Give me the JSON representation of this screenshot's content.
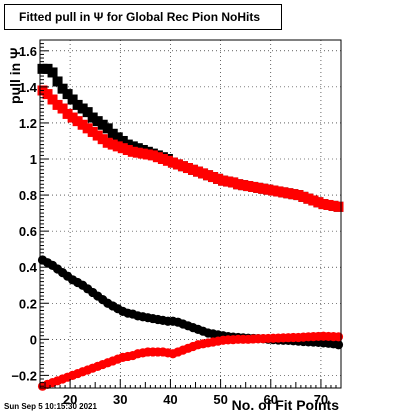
{
  "title": "Fitted pull in  Ψ  for Global Rec Pion NoHits",
  "timestamp": "Sun Sep  5 10:15:30 2021",
  "chart_data": {
    "type": "scatter",
    "xlabel": "No. of Fit Points",
    "ylabel": "pull in  Ψ",
    "xlim": [
      14,
      74
    ],
    "ylim": [
      -0.27,
      1.66
    ],
    "grid": true,
    "xticks": [
      20,
      30,
      40,
      50,
      60,
      70
    ],
    "yticks": [
      -0.2,
      0,
      0.2,
      0.4,
      0.6,
      0.8,
      1,
      1.2,
      1.4,
      1.6
    ],
    "ytick_labels": [
      "−0.2",
      "0",
      "0.2",
      "0.4",
      "0.6",
      "0.8",
      "1",
      "1.2",
      "1.4",
      "1.6"
    ],
    "x": [
      14.5,
      15.5,
      16.5,
      17.5,
      18.5,
      19.5,
      20.5,
      21.5,
      22.5,
      23.5,
      24.5,
      25.5,
      26.5,
      27.5,
      28.5,
      29.5,
      30.5,
      31.5,
      32.5,
      33.5,
      34.5,
      35.5,
      36.5,
      37.5,
      38.5,
      39.5,
      40.5,
      41.5,
      42.5,
      43.5,
      44.5,
      45.5,
      46.5,
      47.5,
      48.5,
      49.5,
      50.5,
      51.5,
      52.5,
      53.5,
      54.5,
      55.5,
      56.5,
      57.5,
      58.5,
      59.5,
      60.5,
      61.5,
      62.5,
      63.5,
      64.5,
      65.5,
      66.5,
      67.5,
      68.5,
      69.5,
      70.5,
      71.5,
      72.5,
      73.5
    ],
    "series": [
      {
        "marker": "square",
        "color": "#000000",
        "values": [
          1.5,
          1.5,
          1.48,
          1.43,
          1.39,
          1.36,
          1.33,
          1.3,
          1.28,
          1.26,
          1.23,
          1.21,
          1.19,
          1.17,
          1.14,
          1.12,
          1.1,
          1.08,
          1.07,
          1.06,
          1.05,
          1.04,
          1.03,
          1.02,
          1.01,
          1.0,
          0.98,
          0.97,
          0.96,
          0.95,
          0.94,
          0.93,
          0.92,
          0.91,
          0.9,
          0.89,
          0.88,
          0.875,
          0.87,
          0.86,
          0.855,
          0.85,
          0.845,
          0.84,
          0.835,
          0.83,
          0.825,
          0.82,
          0.815,
          0.81,
          0.805,
          0.8,
          0.79,
          0.78,
          0.77,
          0.76,
          0.75,
          0.745,
          0.74,
          0.735
        ]
      },
      {
        "marker": "square",
        "color": "#ff0000",
        "values": [
          1.38,
          1.36,
          1.33,
          1.3,
          1.28,
          1.25,
          1.23,
          1.21,
          1.19,
          1.17,
          1.15,
          1.13,
          1.11,
          1.09,
          1.08,
          1.07,
          1.06,
          1.05,
          1.04,
          1.035,
          1.03,
          1.025,
          1.02,
          1.01,
          1.0,
          0.99,
          0.98,
          0.97,
          0.96,
          0.95,
          0.94,
          0.93,
          0.92,
          0.91,
          0.9,
          0.89,
          0.88,
          0.875,
          0.87,
          0.86,
          0.855,
          0.85,
          0.845,
          0.84,
          0.835,
          0.83,
          0.825,
          0.82,
          0.815,
          0.81,
          0.805,
          0.8,
          0.79,
          0.78,
          0.77,
          0.76,
          0.75,
          0.745,
          0.74,
          0.735
        ]
      },
      {
        "marker": "circle",
        "color": "#000000",
        "values": [
          0.44,
          0.425,
          0.41,
          0.39,
          0.37,
          0.35,
          0.33,
          0.315,
          0.3,
          0.28,
          0.26,
          0.24,
          0.22,
          0.2,
          0.185,
          0.17,
          0.155,
          0.145,
          0.14,
          0.13,
          0.125,
          0.12,
          0.115,
          0.11,
          0.105,
          0.1,
          0.1,
          0.095,
          0.085,
          0.075,
          0.065,
          0.055,
          0.045,
          0.035,
          0.03,
          0.025,
          0.02,
          0.015,
          0.012,
          0.01,
          0.008,
          0.006,
          0.005,
          0.004,
          0.003,
          0.0,
          -0.002,
          -0.004,
          -0.005,
          -0.006,
          -0.008,
          -0.01,
          -0.012,
          -0.014,
          -0.015,
          -0.017,
          -0.02,
          -0.022,
          -0.025,
          -0.03
        ]
      },
      {
        "marker": "circle",
        "color": "#ff0000",
        "values": [
          -0.26,
          -0.25,
          -0.24,
          -0.23,
          -0.22,
          -0.21,
          -0.2,
          -0.19,
          -0.18,
          -0.17,
          -0.16,
          -0.15,
          -0.14,
          -0.13,
          -0.12,
          -0.11,
          -0.1,
          -0.095,
          -0.09,
          -0.08,
          -0.075,
          -0.07,
          -0.07,
          -0.07,
          -0.07,
          -0.075,
          -0.08,
          -0.07,
          -0.06,
          -0.05,
          -0.04,
          -0.03,
          -0.025,
          -0.02,
          -0.015,
          -0.01,
          -0.005,
          -0.003,
          -0.002,
          0.0,
          0.0,
          0.0,
          0.002,
          0.003,
          0.004,
          0.005,
          0.006,
          0.007,
          0.008,
          0.009,
          0.01,
          0.01,
          0.012,
          0.014,
          0.015,
          0.016,
          0.017,
          0.016,
          0.015,
          0.014
        ]
      }
    ]
  }
}
